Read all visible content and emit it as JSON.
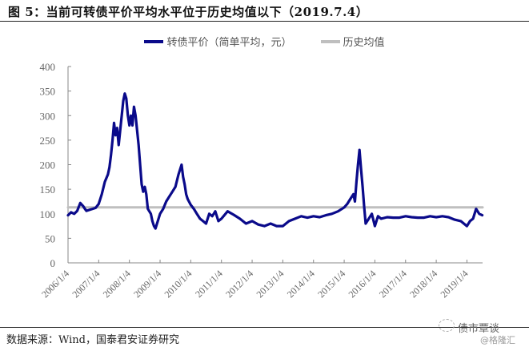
{
  "figure": {
    "title": "图 5：当前可转债平价平均水平位于历史均值以下（2019.7.4）",
    "source": "数据来源：Wind，国泰君安证券研究",
    "watermark": {
      "line1": "债市覃谈",
      "line2": "@格隆汇"
    }
  },
  "legend": {
    "items": [
      {
        "label": "转债平价（简单平均，元）",
        "color": "#0a0a8a"
      },
      {
        "label": "历史均值",
        "color": "#bfbfbf"
      }
    ]
  },
  "chart_data": {
    "type": "line",
    "title": "当前可转债平价平均水平位于历史均值以下（2019.7.4）",
    "xlabel": "",
    "ylabel": "",
    "ylim": [
      0,
      400
    ],
    "yticks": [
      0,
      50,
      100,
      150,
      200,
      250,
      300,
      350,
      400
    ],
    "xticks": [
      "2006/1/4",
      "2007/1/4",
      "2008/1/4",
      "2009/1/4",
      "2010/1/4",
      "2011/1/4",
      "2012/1/4",
      "2013/1/4",
      "2014/1/4",
      "2015/1/4",
      "2016/1/4",
      "2017/1/4",
      "2018/1/4",
      "2019/1/4"
    ],
    "xrange": [
      2006.0,
      2019.51
    ],
    "grid": false,
    "legend_position": "top",
    "series": [
      {
        "name": "转债平价（简单平均，元）",
        "color": "#0a0a8a",
        "x": [
          2006.0,
          2006.1,
          2006.2,
          2006.3,
          2006.4,
          2006.5,
          2006.55,
          2006.6,
          2006.7,
          2006.8,
          2006.9,
          2007.0,
          2007.1,
          2007.2,
          2007.3,
          2007.35,
          2007.4,
          2007.45,
          2007.5,
          2007.55,
          2007.6,
          2007.65,
          2007.7,
          2007.75,
          2007.8,
          2007.85,
          2007.9,
          2007.95,
          2008.0,
          2008.05,
          2008.1,
          2008.15,
          2008.2,
          2008.25,
          2008.3,
          2008.35,
          2008.4,
          2008.45,
          2008.5,
          2008.55,
          2008.6,
          2008.65,
          2008.7,
          2008.75,
          2008.8,
          2008.85,
          2008.9,
          2009.0,
          2009.1,
          2009.2,
          2009.3,
          2009.4,
          2009.5,
          2009.6,
          2009.7,
          2009.75,
          2009.8,
          2009.85,
          2009.9,
          2010.0,
          2010.1,
          2010.2,
          2010.3,
          2010.4,
          2010.5,
          2010.6,
          2010.7,
          2010.8,
          2010.9,
          2011.0,
          2011.2,
          2011.4,
          2011.6,
          2011.8,
          2012.0,
          2012.2,
          2012.4,
          2012.6,
          2012.8,
          2013.0,
          2013.2,
          2013.4,
          2013.6,
          2013.8,
          2014.0,
          2014.2,
          2014.4,
          2014.6,
          2014.8,
          2015.0,
          2015.1,
          2015.2,
          2015.3,
          2015.35,
          2015.4,
          2015.45,
          2015.5,
          2015.55,
          2015.6,
          2015.65,
          2015.7,
          2015.8,
          2015.9,
          2016.0,
          2016.1,
          2016.2,
          2016.4,
          2016.6,
          2016.8,
          2017.0,
          2017.2,
          2017.4,
          2017.6,
          2017.8,
          2018.0,
          2018.2,
          2018.4,
          2018.6,
          2018.8,
          2019.0,
          2019.1,
          2019.2,
          2019.3,
          2019.4,
          2019.5
        ],
        "values": [
          97,
          103,
          100,
          106,
          122,
          115,
          110,
          106,
          108,
          110,
          112,
          120,
          140,
          165,
          180,
          195,
          220,
          250,
          285,
          260,
          275,
          240,
          270,
          300,
          330,
          345,
          335,
          300,
          280,
          300,
          280,
          318,
          300,
          270,
          240,
          200,
          160,
          145,
          155,
          140,
          110,
          105,
          100,
          85,
          75,
          70,
          80,
          100,
          110,
          125,
          135,
          145,
          155,
          180,
          200,
          175,
          160,
          140,
          130,
          118,
          110,
          100,
          90,
          85,
          80,
          100,
          95,
          105,
          85,
          90,
          105,
          98,
          90,
          80,
          85,
          78,
          75,
          80,
          75,
          75,
          85,
          90,
          95,
          92,
          95,
          93,
          97,
          100,
          105,
          113,
          120,
          130,
          140,
          125,
          165,
          200,
          230,
          190,
          155,
          115,
          80,
          90,
          100,
          75,
          95,
          90,
          93,
          92,
          92,
          95,
          93,
          92,
          92,
          95,
          93,
          95,
          93,
          88,
          85,
          75,
          85,
          90,
          110,
          100,
          97
        ]
      },
      {
        "name": "历史均值",
        "color": "#bfbfbf",
        "x": [
          2006.0,
          2019.51
        ],
        "values": [
          113,
          113
        ]
      }
    ]
  }
}
